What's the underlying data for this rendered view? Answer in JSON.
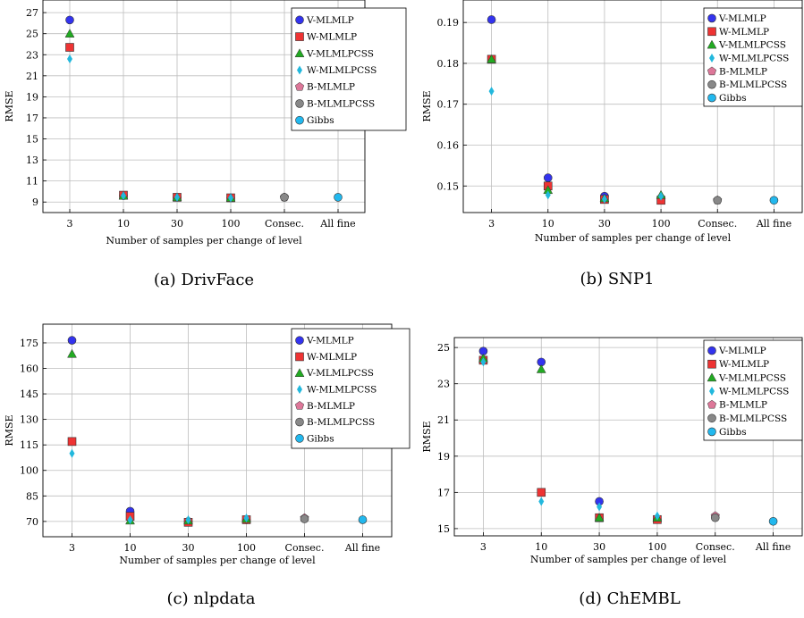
{
  "chart_data": [
    {
      "type": "scatter",
      "caption": "(a) DrivFace",
      "xlabel": "Number of samples per change of level",
      "ylabel": "RMSE",
      "categories": [
        "3",
        "10",
        "30",
        "100",
        "Consec.",
        "All fine"
      ],
      "yticks": [
        9,
        11,
        13,
        15,
        17,
        19,
        21,
        23,
        25,
        27
      ],
      "ylim": [
        8.0,
        28.2
      ],
      "grid": true,
      "legend_position": "top-right",
      "series": [
        {
          "name": "V-MLMLP",
          "marker": "circle",
          "color": "#3333ee",
          "values": [
            26.3,
            9.6,
            9.45,
            9.4,
            null,
            null
          ]
        },
        {
          "name": "W-MLMLP",
          "marker": "square",
          "color": "#ee3333",
          "values": [
            23.7,
            9.65,
            9.45,
            9.4,
            null,
            null
          ]
        },
        {
          "name": "V-MLMLPCSS",
          "marker": "triangle",
          "color": "#22aa22",
          "values": [
            25.0,
            9.6,
            9.45,
            9.4,
            null,
            null
          ]
        },
        {
          "name": "W-MLMLPCSS",
          "marker": "diamond",
          "color": "#22b8dd",
          "values": [
            22.6,
            9.6,
            9.45,
            9.4,
            null,
            null
          ]
        },
        {
          "name": "B-MLMLP",
          "marker": "pentagon",
          "color": "#dd7799",
          "values": [
            null,
            null,
            null,
            null,
            9.45,
            null
          ]
        },
        {
          "name": "B-MLMLPCSS",
          "marker": "circle",
          "color": "#888888",
          "values": [
            null,
            null,
            null,
            null,
            9.45,
            null
          ]
        },
        {
          "name": "Gibbs",
          "marker": "circle",
          "color": "#22b8ee",
          "values": [
            null,
            null,
            null,
            null,
            null,
            9.45
          ]
        }
      ]
    },
    {
      "type": "scatter",
      "caption": "(b) SNP1",
      "xlabel": "Number of samples per change of level",
      "ylabel": "RMSE",
      "categories": [
        "3",
        "10",
        "30",
        "100",
        "Consec.",
        "All fine"
      ],
      "yticks": [
        0.15,
        0.16,
        0.17,
        0.18,
        0.19
      ],
      "yticklabels": [
        "0.15",
        "0.16",
        "0.17",
        "0.18",
        "0.19"
      ],
      "ylim": [
        0.1435,
        0.1955
      ],
      "grid": true,
      "legend_position": "top-right",
      "series": [
        {
          "name": "V-MLMLP",
          "marker": "circle",
          "color": "#3333ee",
          "values": [
            0.1907,
            0.152,
            0.1475,
            0.147,
            null,
            null
          ]
        },
        {
          "name": "W-MLMLP",
          "marker": "square",
          "color": "#ee3333",
          "values": [
            0.181,
            0.15,
            0.1467,
            0.1465,
            null,
            null
          ]
        },
        {
          "name": "V-MLMLPCSS",
          "marker": "triangle",
          "color": "#22aa22",
          "values": [
            0.181,
            0.149,
            0.147,
            0.1478,
            null,
            null
          ]
        },
        {
          "name": "W-MLMLPCSS",
          "marker": "diamond",
          "color": "#22b8dd",
          "values": [
            0.1732,
            0.1478,
            0.1468,
            0.1475,
            null,
            null
          ]
        },
        {
          "name": "B-MLMLP",
          "marker": "pentagon",
          "color": "#dd7799",
          "values": [
            null,
            null,
            null,
            null,
            0.1465,
            null
          ]
        },
        {
          "name": "B-MLMLPCSS",
          "marker": "circle",
          "color": "#888888",
          "values": [
            null,
            null,
            null,
            null,
            0.1465,
            null
          ]
        },
        {
          "name": "Gibbs",
          "marker": "circle",
          "color": "#22b8ee",
          "values": [
            null,
            null,
            null,
            null,
            null,
            0.1465
          ]
        }
      ]
    },
    {
      "type": "scatter",
      "caption": "(c) nlpdata",
      "xlabel": "Number of samples per change of level",
      "ylabel": "RMSE",
      "categories": [
        "3",
        "10",
        "30",
        "100",
        "Consec.",
        "All fine"
      ],
      "yticks": [
        70,
        85,
        100,
        115,
        130,
        145,
        160,
        175
      ],
      "ylim": [
        61,
        186
      ],
      "grid": true,
      "legend_position": "top-right",
      "series": [
        {
          "name": "V-MLMLP",
          "marker": "circle",
          "color": "#3333ee",
          "values": [
            176.5,
            76,
            70,
            71,
            null,
            null
          ]
        },
        {
          "name": "W-MLMLP",
          "marker": "square",
          "color": "#ee3333",
          "values": [
            117,
            73,
            69.5,
            71,
            null,
            null
          ]
        },
        {
          "name": "V-MLMLPCSS",
          "marker": "triangle",
          "color": "#22aa22",
          "values": [
            168.5,
            70.5,
            70.5,
            71.5,
            null,
            null
          ]
        },
        {
          "name": "W-MLMLPCSS",
          "marker": "diamond",
          "color": "#22b8dd",
          "values": [
            110,
            71,
            71,
            72,
            null,
            null
          ]
        },
        {
          "name": "B-MLMLP",
          "marker": "pentagon",
          "color": "#dd7799",
          "values": [
            null,
            null,
            null,
            null,
            72,
            null
          ]
        },
        {
          "name": "B-MLMLPCSS",
          "marker": "circle",
          "color": "#888888",
          "values": [
            null,
            null,
            null,
            null,
            71.5,
            null
          ]
        },
        {
          "name": "Gibbs",
          "marker": "circle",
          "color": "#22b8ee",
          "values": [
            null,
            null,
            null,
            null,
            null,
            71
          ]
        }
      ]
    },
    {
      "type": "scatter",
      "caption": "(d) ChEMBL",
      "xlabel": "Number of samples per change of level",
      "ylabel": "RMSE",
      "categories": [
        "3",
        "10",
        "30",
        "100",
        "Consec.",
        "All fine"
      ],
      "yticks": [
        15,
        17,
        19,
        21,
        23,
        25
      ],
      "ylim": [
        14.6,
        25.55
      ],
      "grid": true,
      "legend_position": "top-right",
      "series": [
        {
          "name": "V-MLMLP",
          "marker": "circle",
          "color": "#3333ee",
          "values": [
            24.8,
            24.2,
            16.5,
            15.5,
            null,
            null
          ]
        },
        {
          "name": "W-MLMLP",
          "marker": "square",
          "color": "#ee3333",
          "values": [
            24.3,
            17.0,
            15.6,
            15.5,
            null,
            null
          ]
        },
        {
          "name": "V-MLMLPCSS",
          "marker": "triangle",
          "color": "#22aa22",
          "values": [
            24.4,
            23.8,
            15.6,
            15.6,
            null,
            null
          ]
        },
        {
          "name": "W-MLMLPCSS",
          "marker": "diamond",
          "color": "#22b8dd",
          "values": [
            24.2,
            16.5,
            16.2,
            15.7,
            null,
            null
          ]
        },
        {
          "name": "B-MLMLP",
          "marker": "pentagon",
          "color": "#dd7799",
          "values": [
            null,
            null,
            null,
            null,
            15.7,
            null
          ]
        },
        {
          "name": "B-MLMLPCSS",
          "marker": "circle",
          "color": "#888888",
          "values": [
            null,
            null,
            null,
            null,
            15.6,
            null
          ]
        },
        {
          "name": "Gibbs",
          "marker": "circle",
          "color": "#22b8ee",
          "values": [
            null,
            null,
            null,
            null,
            null,
            15.4
          ]
        }
      ]
    }
  ]
}
